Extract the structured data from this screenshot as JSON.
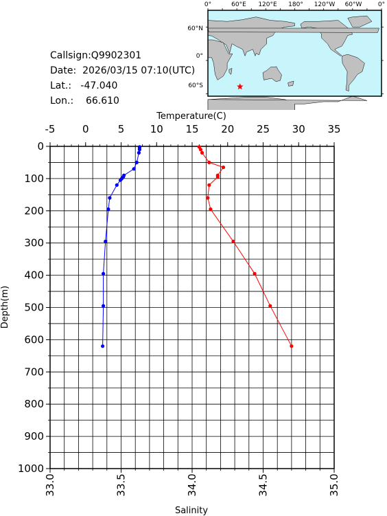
{
  "info": {
    "callsign": "Callsign:Q9902301",
    "date": "Date:  2026/03/15 07:10(UTC)",
    "lat": "Lat.:   -47.040",
    "lon": "Lon.:    66.610"
  },
  "map": {
    "lon_labels": [
      "0°",
      "60°E",
      "120°E",
      "180°",
      "120°W",
      "60°W",
      "0°"
    ],
    "lat_labels": [
      "60°N",
      "0°",
      "60°S"
    ],
    "station": {
      "lon": 66.61,
      "lat": -47.04
    },
    "ocean_color": "#c8f4fb",
    "land_color": "#c0c0c0",
    "marker_color": "#ff0000"
  },
  "chart_data": {
    "type": "line",
    "top_axis_label": "Temperature(C)",
    "bottom_axis_label": "Salinity",
    "left_axis_label": "Depth(m)",
    "temp_ticks": [
      "-5",
      "0",
      "5",
      "10",
      "15",
      "20",
      "25",
      "30",
      "35"
    ],
    "sal_ticks": [
      "33.0",
      "33.5",
      "34.0",
      "34.5",
      "35.0"
    ],
    "depth_ticks": [
      "0",
      "100",
      "200",
      "300",
      "400",
      "500",
      "600",
      "700",
      "800",
      "900",
      "1000"
    ],
    "temp_range": [
      -5,
      35
    ],
    "sal_range": [
      33.0,
      35.0
    ],
    "depth_range": [
      0,
      1000
    ],
    "grid": true,
    "series": [
      {
        "color": "#0000ff",
        "axis": "temperature",
        "depth": [
          2,
          5,
          10,
          20,
          50,
          70,
          90,
          95,
          100,
          105,
          120,
          160,
          195,
          295,
          395,
          495,
          620
        ],
        "values": [
          7.6,
          7.6,
          7.6,
          7.5,
          7.2,
          6.8,
          5.4,
          5.3,
          5.1,
          4.9,
          4.4,
          3.4,
          3.2,
          2.8,
          2.5,
          2.5,
          2.4
        ]
      },
      {
        "color": "#ff0000",
        "axis": "salinity",
        "depth": [
          2,
          10,
          20,
          50,
          65,
          90,
          95,
          120,
          160,
          195,
          295,
          395,
          495,
          620
        ],
        "values": [
          34.05,
          34.06,
          34.07,
          34.12,
          34.22,
          34.18,
          34.18,
          34.12,
          34.11,
          34.13,
          34.29,
          34.44,
          34.55,
          34.7
        ]
      }
    ]
  }
}
